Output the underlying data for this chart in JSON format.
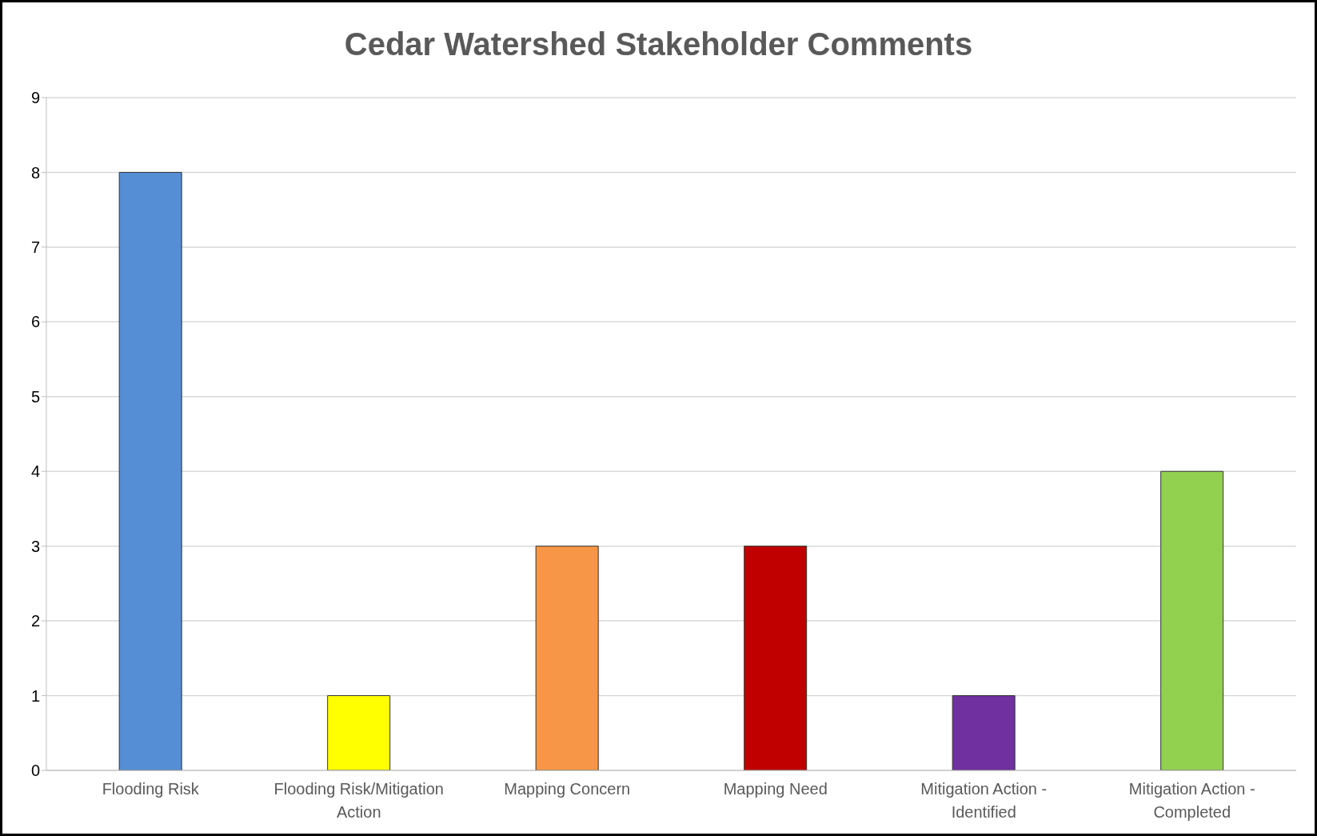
{
  "chart_data": {
    "type": "bar",
    "title": "Cedar Watershed Stakeholder Comments",
    "categories": [
      "Flooding Risk",
      "Flooding Risk/Mitigation Action",
      "Mapping Concern",
      "Mapping Need",
      "Mitigation Action - Identified",
      "Mitigation Action - Completed"
    ],
    "values": [
      8,
      1,
      3,
      3,
      1,
      4
    ],
    "colors": [
      "#558ed5",
      "#ffff00",
      "#f79646",
      "#c00000",
      "#7030a0",
      "#92d050"
    ],
    "ylim": [
      0,
      9
    ],
    "yticks": [
      0,
      1,
      2,
      3,
      4,
      5,
      6,
      7,
      8,
      9
    ],
    "grid": "y",
    "legend": false
  }
}
